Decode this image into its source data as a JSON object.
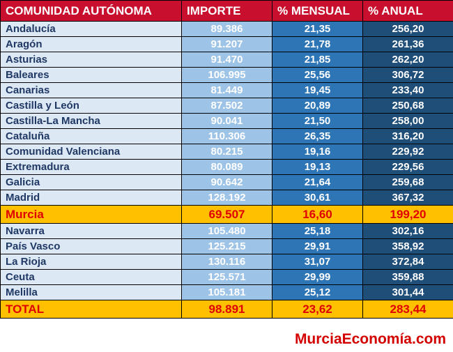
{
  "table": {
    "headers": [
      "COMUNIDAD AUTÓNOMA",
      "IMPORTE",
      "% MENSUAL",
      "% ANUAL"
    ],
    "rows": [
      {
        "name": "Andalucía",
        "importe": "89.386",
        "mensual": "21,35",
        "anual": "256,20"
      },
      {
        "name": "Aragón",
        "importe": "91.207",
        "mensual": "21,78",
        "anual": "261,36"
      },
      {
        "name": "Asturias",
        "importe": "91.470",
        "mensual": "21,85",
        "anual": "262,20"
      },
      {
        "name": "Baleares",
        "importe": "106.995",
        "mensual": "25,56",
        "anual": "306,72"
      },
      {
        "name": "Canarias",
        "importe": "81.449",
        "mensual": "19,45",
        "anual": "233,40"
      },
      {
        "name": "Castilla y León",
        "importe": "87.502",
        "mensual": "20,89",
        "anual": "250,68"
      },
      {
        "name": "Castilla-La Mancha",
        "importe": "90.041",
        "mensual": "21,50",
        "anual": "258,00"
      },
      {
        "name": "Cataluña",
        "importe": "110.306",
        "mensual": "26,35",
        "anual": "316,20"
      },
      {
        "name": "Comunidad Valenciana",
        "importe": "80.215",
        "mensual": "19,16",
        "anual": "229,92"
      },
      {
        "name": "Extremadura",
        "importe": "80.089",
        "mensual": "19,13",
        "anual": "229,56"
      },
      {
        "name": "Galicia",
        "importe": "90.642",
        "mensual": "21,64",
        "anual": "259,68"
      },
      {
        "name": "Madrid",
        "importe": "128.192",
        "mensual": "30,61",
        "anual": "367,32"
      },
      {
        "name": "Murcia",
        "importe": "69.507",
        "mensual": "16,60",
        "anual": "199,20",
        "highlight": true
      },
      {
        "name": "Navarra",
        "importe": "105.480",
        "mensual": "25,18",
        "anual": "302,16"
      },
      {
        "name": "País Vasco",
        "importe": "125.215",
        "mensual": "29,91",
        "anual": "358,92"
      },
      {
        "name": "La Rioja",
        "importe": "130.116",
        "mensual": "31,07",
        "anual": "372,84"
      },
      {
        "name": "Ceuta",
        "importe": "125.571",
        "mensual": "29,99",
        "anual": "359,88"
      },
      {
        "name": "Melilla",
        "importe": "105.181",
        "mensual": "25,12",
        "anual": "301,44"
      }
    ],
    "total": {
      "name": "TOTAL",
      "importe": "98.891",
      "mensual": "23,62",
      "anual": "283,44"
    }
  },
  "footer": {
    "brand": "MurciaEconomía.com"
  },
  "colors": {
    "header_bg": "#c8102e",
    "name_bg": "#dde8f5",
    "importe_bg": "#9dc3e6",
    "mensual_bg": "#2e75b6",
    "anual_bg": "#1f4e79",
    "highlight_bg": "#ffc000",
    "highlight_text": "#e00000"
  }
}
